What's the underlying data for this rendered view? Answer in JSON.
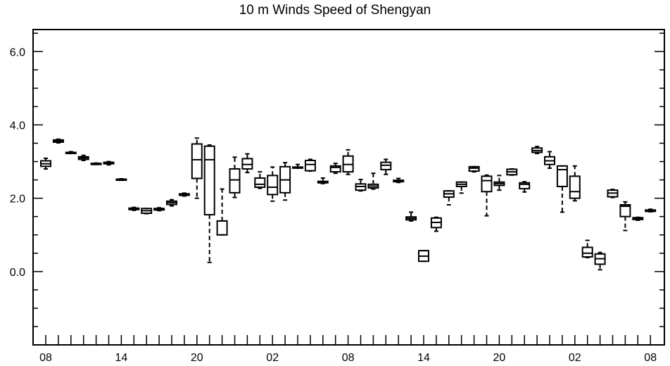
{
  "chart_data": {
    "type": "boxplot",
    "title": "10 m Winds Speed of Shengyan",
    "xlabel": "",
    "ylabel": "",
    "ylim": [
      -2.0,
      6.6
    ],
    "y_ticks": [
      "6.0",
      "4.0",
      "2.0",
      "0.0"
    ],
    "y_tick_values": [
      6.0,
      4.0,
      2.0,
      0.0
    ],
    "x_tick_labels": [
      "08",
      "14",
      "20",
      "02",
      "08",
      "14",
      "20",
      "02",
      "08"
    ],
    "x_tick_indices": [
      0,
      6,
      12,
      18,
      24,
      30,
      36,
      42,
      48
    ],
    "x_count": 49,
    "grid": false,
    "boxes": [
      {
        "x": 0,
        "min": 2.8,
        "q1": 2.87,
        "median": 2.94,
        "q3": 3.02,
        "max": 3.09
      },
      {
        "x": 1,
        "min": 3.51,
        "q1": 3.53,
        "median": 3.56,
        "q3": 3.59,
        "max": 3.61
      },
      {
        "x": 2,
        "min": 3.22,
        "q1": 3.23,
        "median": 3.24,
        "q3": 3.25,
        "max": 3.27
      },
      {
        "x": 3,
        "min": 3.03,
        "q1": 3.06,
        "median": 3.1,
        "q3": 3.13,
        "max": 3.17
      },
      {
        "x": 4,
        "min": 2.92,
        "q1": 2.93,
        "median": 2.94,
        "q3": 2.95,
        "max": 2.96
      },
      {
        "x": 5,
        "min": 2.91,
        "q1": 2.94,
        "median": 2.96,
        "q3": 2.98,
        "max": 3.0
      },
      {
        "x": 6,
        "min": 2.49,
        "q1": 2.5,
        "median": 2.51,
        "q3": 2.52,
        "max": 2.53
      },
      {
        "x": 7,
        "min": 1.67,
        "q1": 1.69,
        "median": 1.71,
        "q3": 1.73,
        "max": 1.75
      },
      {
        "x": 8,
        "min": 1.58,
        "q1": 1.59,
        "median": 1.66,
        "q3": 1.72,
        "max": 1.72
      },
      {
        "x": 9,
        "min": 1.66,
        "q1": 1.68,
        "median": 1.7,
        "q3": 1.72,
        "max": 1.74
      },
      {
        "x": 10,
        "min": 1.79,
        "q1": 1.83,
        "median": 1.88,
        "q3": 1.92,
        "max": 1.96
      },
      {
        "x": 11,
        "min": 2.06,
        "q1": 2.08,
        "median": 2.1,
        "q3": 2.12,
        "max": 2.14
      },
      {
        "x": 12,
        "min": 2.0,
        "q1": 2.54,
        "median": 3.05,
        "q3": 3.48,
        "max": 3.64
      },
      {
        "x": 13,
        "min": 0.25,
        "q1": 1.55,
        "median": 3.05,
        "q3": 3.42,
        "max": 3.45
      },
      {
        "x": 14,
        "min": 1.0,
        "q1": 1.0,
        "median": 1.38,
        "q3": 1.38,
        "max": 2.25
      },
      {
        "x": 15,
        "min": 2.02,
        "q1": 2.15,
        "median": 2.5,
        "q3": 2.8,
        "max": 3.12
      },
      {
        "x": 16,
        "min": 2.7,
        "q1": 2.8,
        "median": 2.92,
        "q3": 3.08,
        "max": 3.21
      },
      {
        "x": 17,
        "min": 2.27,
        "q1": 2.3,
        "median": 2.38,
        "q3": 2.55,
        "max": 2.72
      },
      {
        "x": 18,
        "min": 1.92,
        "q1": 2.1,
        "median": 2.3,
        "q3": 2.62,
        "max": 2.85
      },
      {
        "x": 19,
        "min": 1.95,
        "q1": 2.15,
        "median": 2.5,
        "q3": 2.86,
        "max": 2.97
      },
      {
        "x": 20,
        "min": 2.82,
        "q1": 2.83,
        "median": 2.84,
        "q3": 2.85,
        "max": 2.92
      },
      {
        "x": 21,
        "min": 2.74,
        "q1": 2.75,
        "median": 2.92,
        "q3": 3.03,
        "max": 3.06
      },
      {
        "x": 22,
        "min": 2.4,
        "q1": 2.42,
        "median": 2.44,
        "q3": 2.46,
        "max": 2.55
      },
      {
        "x": 23,
        "min": 2.68,
        "q1": 2.72,
        "median": 2.84,
        "q3": 2.88,
        "max": 2.95
      },
      {
        "x": 24,
        "min": 2.65,
        "q1": 2.72,
        "median": 2.92,
        "q3": 3.15,
        "max": 3.32
      },
      {
        "x": 25,
        "min": 2.2,
        "q1": 2.22,
        "median": 2.32,
        "q3": 2.39,
        "max": 2.51
      },
      {
        "x": 26,
        "min": 2.25,
        "q1": 2.28,
        "median": 2.33,
        "q3": 2.38,
        "max": 2.68
      },
      {
        "x": 27,
        "min": 2.65,
        "q1": 2.78,
        "median": 2.9,
        "q3": 2.98,
        "max": 3.06
      },
      {
        "x": 28,
        "min": 2.43,
        "q1": 2.45,
        "median": 2.47,
        "q3": 2.49,
        "max": 2.54
      },
      {
        "x": 29,
        "min": 1.38,
        "q1": 1.41,
        "median": 1.45,
        "q3": 1.49,
        "max": 1.62
      },
      {
        "x": 30,
        "min": 0.28,
        "q1": 0.28,
        "median": 0.42,
        "q3": 0.57,
        "max": 0.57
      },
      {
        "x": 31,
        "min": 1.1,
        "q1": 1.2,
        "median": 1.34,
        "q3": 1.46,
        "max": 1.48
      },
      {
        "x": 32,
        "min": 1.82,
        "q1": 2.03,
        "median": 2.12,
        "q3": 2.2,
        "max": 2.2
      },
      {
        "x": 33,
        "min": 2.14,
        "q1": 2.32,
        "median": 2.38,
        "q3": 2.44,
        "max": 2.44
      },
      {
        "x": 34,
        "min": 2.72,
        "q1": 2.74,
        "median": 2.82,
        "q3": 2.86,
        "max": 2.86
      },
      {
        "x": 35,
        "min": 1.52,
        "q1": 2.18,
        "median": 2.48,
        "q3": 2.6,
        "max": 2.63
      },
      {
        "x": 36,
        "min": 2.22,
        "q1": 2.35,
        "median": 2.4,
        "q3": 2.44,
        "max": 2.62
      },
      {
        "x": 37,
        "min": 2.63,
        "q1": 2.64,
        "median": 2.72,
        "q3": 2.79,
        "max": 2.8
      },
      {
        "x": 38,
        "min": 2.17,
        "q1": 2.26,
        "median": 2.38,
        "q3": 2.42,
        "max": 2.45
      },
      {
        "x": 39,
        "min": 3.22,
        "q1": 3.25,
        "median": 3.3,
        "q3": 3.37,
        "max": 3.41
      },
      {
        "x": 40,
        "min": 2.82,
        "q1": 2.92,
        "median": 3.02,
        "q3": 3.13,
        "max": 3.27
      },
      {
        "x": 41,
        "min": 1.62,
        "q1": 2.32,
        "median": 2.78,
        "q3": 2.88,
        "max": 2.88
      },
      {
        "x": 42,
        "min": 1.93,
        "q1": 2.0,
        "median": 2.18,
        "q3": 2.6,
        "max": 2.88
      },
      {
        "x": 43,
        "min": 0.38,
        "q1": 0.4,
        "median": 0.5,
        "q3": 0.66,
        "max": 0.85
      },
      {
        "x": 44,
        "min": 0.05,
        "q1": 0.2,
        "median": 0.35,
        "q3": 0.48,
        "max": 0.52
      },
      {
        "x": 45,
        "min": 2.02,
        "q1": 2.04,
        "median": 2.14,
        "q3": 2.22,
        "max": 2.24
      },
      {
        "x": 46,
        "min": 1.12,
        "q1": 1.5,
        "median": 1.78,
        "q3": 1.82,
        "max": 1.9
      },
      {
        "x": 47,
        "min": 1.4,
        "q1": 1.42,
        "median": 1.44,
        "q3": 1.47,
        "max": 1.48
      },
      {
        "x": 48,
        "min": 1.63,
        "q1": 1.64,
        "median": 1.66,
        "q3": 1.68,
        "max": 1.7
      }
    ]
  }
}
